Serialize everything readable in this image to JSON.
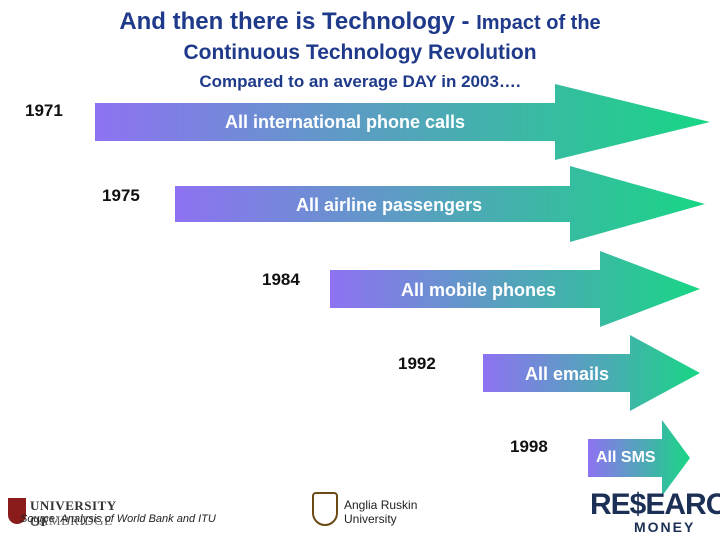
{
  "title": {
    "line1_main": "And then there is Technology - ",
    "line1_sub": "Impact of the",
    "line2": "Continuous Technology Revolution",
    "line3": "Compared to an average DAY in 2003…."
  },
  "arrows": [
    {
      "year": "1971",
      "label": "All international phone calls"
    },
    {
      "year": "1975",
      "label": "All airline passengers"
    },
    {
      "year": "1984",
      "label": "All mobile phones"
    },
    {
      "year": "1992",
      "label": "All emails"
    },
    {
      "year": "1998",
      "label": "All SMS"
    }
  ],
  "colors": {
    "title": "#1f3a8a",
    "arrow_start": "#8e72f2",
    "arrow_end": "#18d684"
  },
  "footer": {
    "source": "Source: Analysis of World Bank and ITU",
    "cambridge_line1": "UNIVERSITY OF",
    "cambridge_line2": "CAMBRIDGE",
    "anglia_line1": "Anglia Ruskin",
    "anglia_line2": "University",
    "research_money_line1": "RE$EARCH",
    "research_money_line2": "MONEY"
  }
}
